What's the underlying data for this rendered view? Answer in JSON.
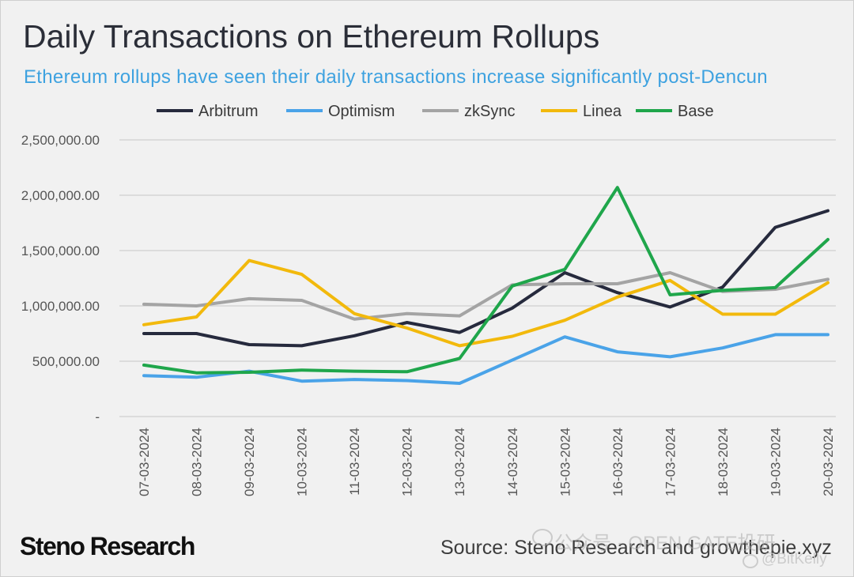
{
  "header": {
    "title": "Daily Transactions on Ethereum Rollups",
    "subtitle": "Ethereum rollups have seen their daily transactions increase significantly post-Dencun"
  },
  "footer": {
    "logo": "Steno Research",
    "source": "Source: Steno Research and growthepie.xyz",
    "watermark_1": "公众号 · OPEN GATE投研",
    "watermark_2": "@BitKelly"
  },
  "colors": {
    "Arbitrum": "#262a3d",
    "Optimism": "#4aa3e8",
    "zkSync": "#a4a4a4",
    "Linea": "#f2b90c",
    "Base": "#1fa64b",
    "grid": "#d0d0d0"
  },
  "chart_data": {
    "type": "line",
    "title": "Daily Transactions on Ethereum Rollups",
    "subtitle": "Ethereum rollups have seen their daily transactions increase significantly post-Dencun",
    "xlabel": "",
    "ylabel": "",
    "ylim": [
      0,
      2500000
    ],
    "grid": true,
    "legend_position": "top-center",
    "y_ticks": [
      {
        "value": 0,
        "label": "-"
      },
      {
        "value": 500000,
        "label": "500,000.00"
      },
      {
        "value": 1000000,
        "label": "1,000,000.00"
      },
      {
        "value": 1500000,
        "label": "1,500,000.00"
      },
      {
        "value": 2000000,
        "label": "2,000,000.00"
      },
      {
        "value": 2500000,
        "label": "2,500,000.00"
      }
    ],
    "categories": [
      "07-03-2024",
      "08-03-2024",
      "09-03-2024",
      "10-03-2024",
      "11-03-2024",
      "12-03-2024",
      "13-03-2024",
      "14-03-2024",
      "15-03-2024",
      "16-03-2024",
      "17-03-2024",
      "18-03-2024",
      "19-03-2024",
      "20-03-2024"
    ],
    "series": [
      {
        "name": "Arbitrum",
        "values": [
          750000,
          750000,
          650000,
          640000,
          730000,
          850000,
          760000,
          980000,
          1300000,
          1120000,
          990000,
          1170000,
          1710000,
          1860000
        ]
      },
      {
        "name": "Optimism",
        "values": [
          370000,
          355000,
          410000,
          320000,
          335000,
          325000,
          300000,
          510000,
          720000,
          585000,
          540000,
          620000,
          740000,
          740000
        ]
      },
      {
        "name": "zkSync",
        "values": [
          1015000,
          1000000,
          1065000,
          1050000,
          880000,
          930000,
          910000,
          1190000,
          1200000,
          1200000,
          1300000,
          1130000,
          1150000,
          1240000
        ]
      },
      {
        "name": "Linea",
        "values": [
          830000,
          900000,
          1410000,
          1285000,
          930000,
          800000,
          640000,
          725000,
          870000,
          1080000,
          1230000,
          925000,
          925000,
          1210000
        ]
      },
      {
        "name": "Base",
        "values": [
          465000,
          395000,
          400000,
          420000,
          410000,
          405000,
          525000,
          1180000,
          1330000,
          2070000,
          1100000,
          1140000,
          1165000,
          1600000
        ]
      }
    ]
  }
}
